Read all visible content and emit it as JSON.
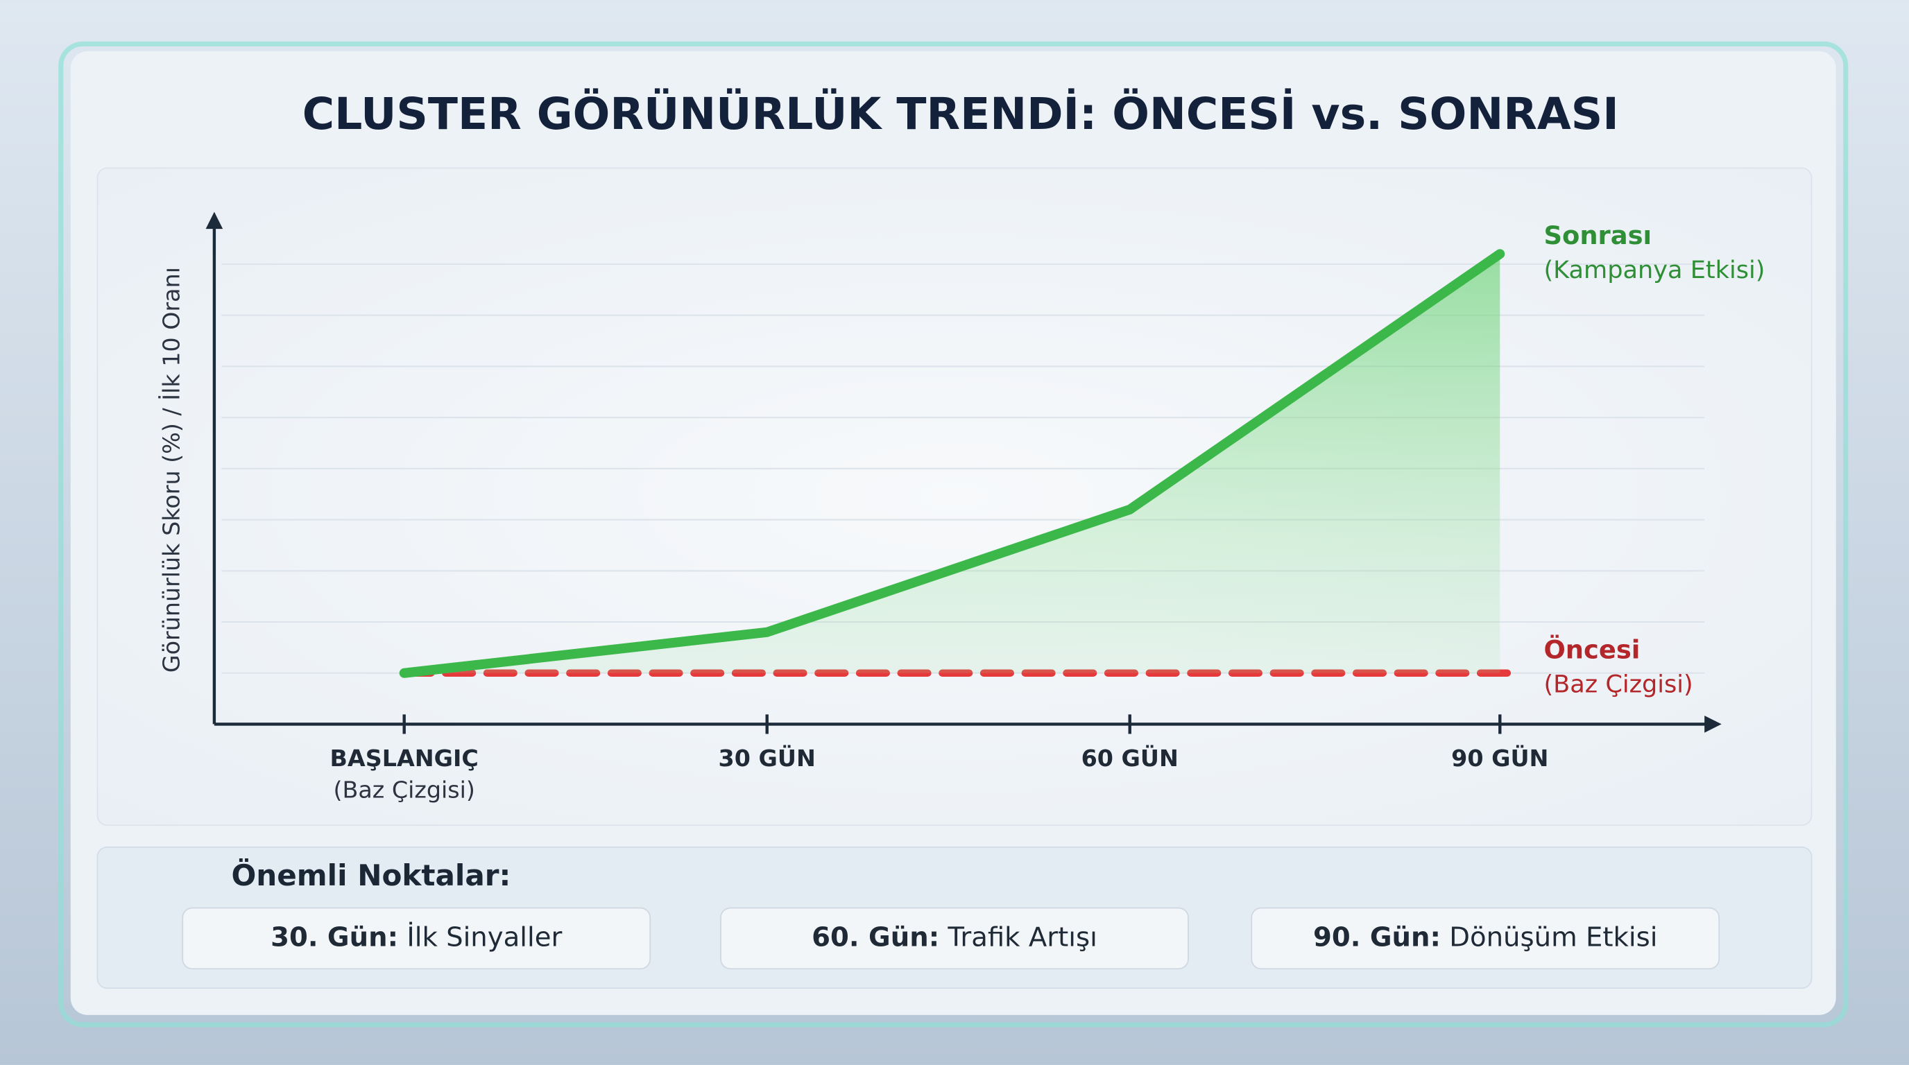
{
  "chart_data": {
    "type": "line",
    "title": "CLUSTER GÖRÜNÜRLÜK TRENDİ: ÖNCESİ vs. SONRASI",
    "y_label": "Görünürlük Skoru (%) / İlk 10 Oranı",
    "categories": [
      "BAŞLANGIÇ",
      "30 GÜN",
      "60 GÜN",
      "90 GÜN"
    ],
    "category_sublabels": [
      "(Baz Çizgisi)",
      null,
      null,
      null
    ],
    "ylim": [
      0,
      10
    ],
    "yticks": [
      1,
      2,
      3,
      4,
      5,
      6,
      7,
      8,
      9
    ],
    "grid": true,
    "series": [
      {
        "name": "Sonrası",
        "note": "(Kampanya Etkisi)",
        "color": "#3cb84a",
        "style": "solid",
        "fill": true,
        "values": [
          1,
          1.8,
          4.2,
          9.2
        ]
      },
      {
        "name": "Öncesi",
        "note": "(Baz Çizgisi)",
        "color": "#e5393b",
        "style": "dashed",
        "fill": false,
        "values": [
          1,
          1,
          1,
          1
        ]
      }
    ]
  },
  "key_points": {
    "title": "Önemli Noktalar:",
    "items": [
      {
        "label": "30. Gün:",
        "text": "İlk Sinyaller"
      },
      {
        "label": "60. Gün:",
        "text": "Trafik Artışı"
      },
      {
        "label": "90. Gün:",
        "text": "Dönüşüm Etkisi"
      }
    ]
  }
}
